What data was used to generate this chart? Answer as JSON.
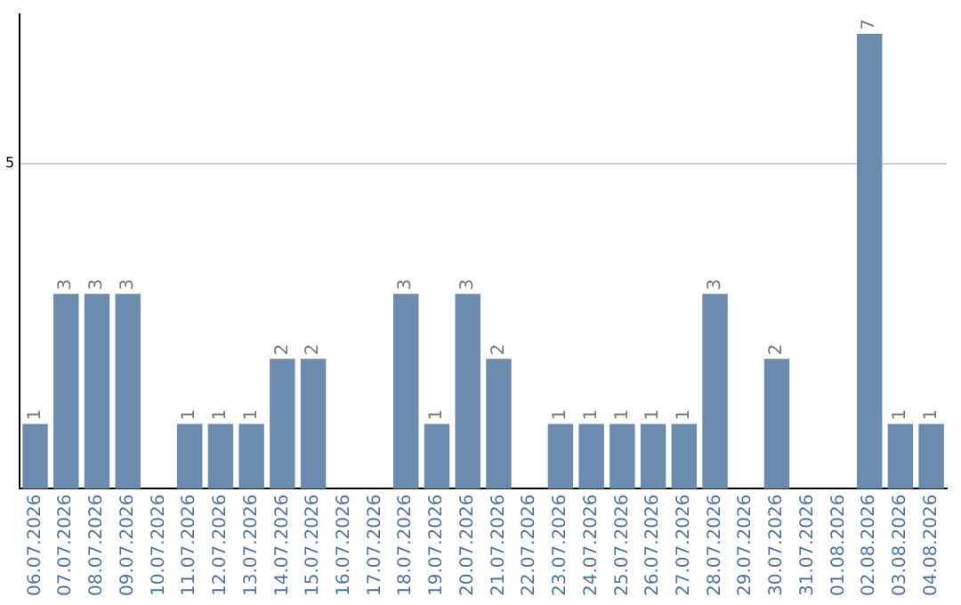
{
  "chart_data": {
    "type": "bar",
    "categories": [
      "06.07.2026",
      "07.07.2026",
      "08.07.2026",
      "09.07.2026",
      "10.07.2026",
      "11.07.2026",
      "12.07.2026",
      "13.07.2026",
      "14.07.2026",
      "15.07.2026",
      "16.07.2026",
      "17.07.2026",
      "18.07.2026",
      "19.07.2026",
      "20.07.2026",
      "21.07.2026",
      "22.07.2026",
      "23.07.2026",
      "24.07.2026",
      "25.07.2026",
      "26.07.2026",
      "27.07.2026",
      "28.07.2026",
      "29.07.2026",
      "30.07.2026",
      "31.07.2026",
      "01.08.2026",
      "02.08.2026",
      "03.08.2026",
      "04.08.2026"
    ],
    "values": [
      1,
      3,
      3,
      3,
      0,
      1,
      1,
      1,
      2,
      2,
      0,
      0,
      3,
      1,
      3,
      2,
      0,
      1,
      1,
      1,
      1,
      1,
      3,
      0,
      2,
      0,
      0,
      7,
      1,
      1
    ],
    "value_labels": [
      "1",
      "3",
      "3",
      "3",
      null,
      "1",
      "1",
      "1",
      "2",
      "2",
      null,
      null,
      "3",
      "1",
      "3",
      "2",
      null,
      "1",
      "1",
      "1",
      "1",
      "1",
      "3",
      null,
      "2",
      null,
      null,
      "7",
      "1",
      "1"
    ],
    "color": "#6b8cae",
    "ylim": [
      0,
      7.3
    ],
    "yticks": [
      5
    ],
    "grid": "y",
    "legend": false
  }
}
